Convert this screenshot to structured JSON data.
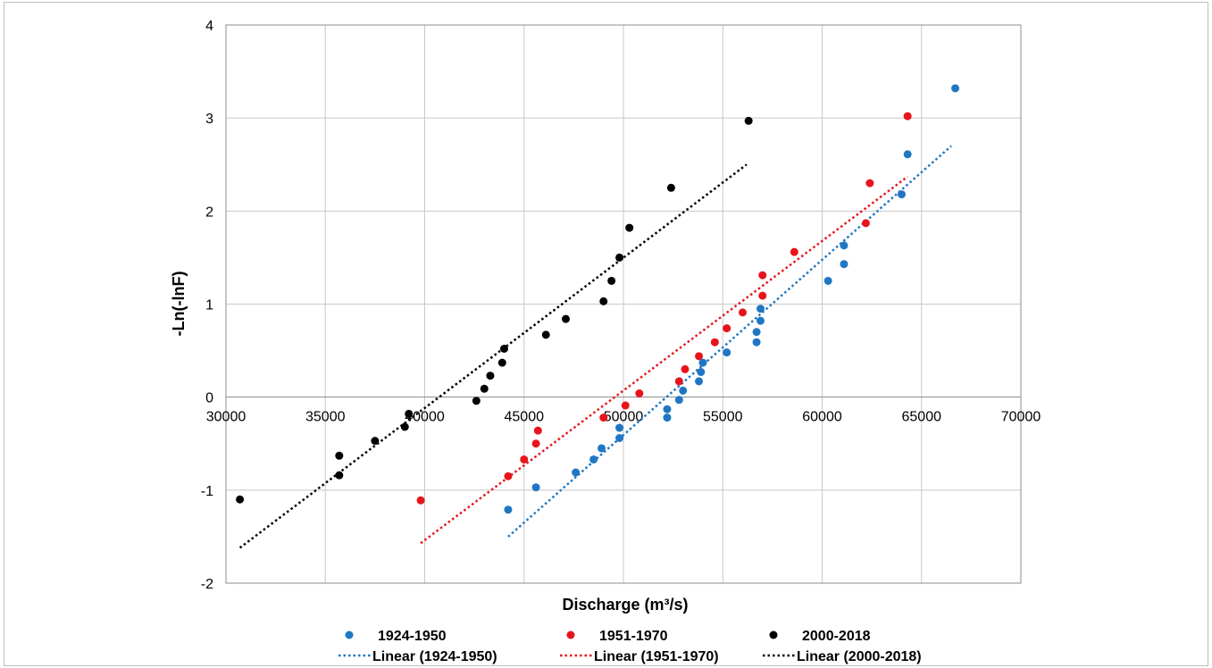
{
  "chart_data": {
    "type": "scatter",
    "xlabel": "Discharge (m³/s)",
    "ylabel": "-Ln(-lnF)",
    "xlim": [
      30000,
      70000
    ],
    "ylim": [
      -2,
      4
    ],
    "x_ticks": [
      30000,
      35000,
      40000,
      45000,
      50000,
      55000,
      60000,
      65000,
      70000
    ],
    "y_ticks": [
      -2,
      -1,
      0,
      1,
      2,
      3,
      4
    ],
    "grid": true,
    "legend_position": "bottom",
    "series": [
      {
        "name": "1924-1950",
        "color": "#1f77c4",
        "points": [
          [
            44200,
            -1.21
          ],
          [
            45600,
            -0.97
          ],
          [
            47600,
            -0.81
          ],
          [
            48500,
            -0.67
          ],
          [
            48900,
            -0.55
          ],
          [
            49800,
            -0.44
          ],
          [
            49800,
            -0.33
          ],
          [
            52200,
            -0.22
          ],
          [
            52200,
            -0.13
          ],
          [
            52800,
            -0.03
          ],
          [
            53000,
            0.07
          ],
          [
            53800,
            0.17
          ],
          [
            53900,
            0.27
          ],
          [
            54000,
            0.37
          ],
          [
            55200,
            0.48
          ],
          [
            56700,
            0.59
          ],
          [
            56700,
            0.7
          ],
          [
            56900,
            0.82
          ],
          [
            56900,
            0.95
          ],
          [
            60300,
            1.25
          ],
          [
            61100,
            1.43
          ],
          [
            61100,
            1.63
          ],
          [
            64000,
            2.18
          ],
          [
            64300,
            2.61
          ],
          [
            66700,
            3.32
          ]
        ],
        "trend": {
          "name": "Linear (1924-1950)",
          "x": [
            44200,
            66500
          ],
          "y": [
            -1.5,
            2.7
          ]
        }
      },
      {
        "name": "1951-1970",
        "color": "#e8141c",
        "points": [
          [
            39800,
            -1.11
          ],
          [
            44200,
            -0.85
          ],
          [
            45000,
            -0.67
          ],
          [
            45600,
            -0.5
          ],
          [
            45700,
            -0.36
          ],
          [
            49000,
            -0.22
          ],
          [
            50100,
            -0.09
          ],
          [
            50800,
            0.04
          ],
          [
            52800,
            0.17
          ],
          [
            53100,
            0.3
          ],
          [
            53800,
            0.44
          ],
          [
            54600,
            0.59
          ],
          [
            55200,
            0.74
          ],
          [
            56000,
            0.91
          ],
          [
            57000,
            1.09
          ],
          [
            57000,
            1.31
          ],
          [
            58600,
            1.56
          ],
          [
            62200,
            1.87
          ],
          [
            62400,
            2.3
          ],
          [
            64300,
            3.02
          ]
        ],
        "trend": {
          "name": "Linear (1951-1970)",
          "x": [
            39800,
            64300
          ],
          "y": [
            -1.57,
            2.37
          ]
        }
      },
      {
        "name": "2000-2018",
        "color": "#000000",
        "points": [
          [
            30700,
            -1.1
          ],
          [
            35700,
            -0.84
          ],
          [
            35700,
            -0.63
          ],
          [
            37500,
            -0.47
          ],
          [
            39000,
            -0.32
          ],
          [
            39200,
            -0.18
          ],
          [
            42600,
            -0.04
          ],
          [
            43000,
            0.09
          ],
          [
            43300,
            0.23
          ],
          [
            43900,
            0.37
          ],
          [
            44000,
            0.52
          ],
          [
            46100,
            0.67
          ],
          [
            47100,
            0.84
          ],
          [
            49000,
            1.03
          ],
          [
            49400,
            1.25
          ],
          [
            49800,
            1.5
          ],
          [
            50300,
            1.82
          ],
          [
            52400,
            2.25
          ],
          [
            56300,
            2.97
          ]
        ],
        "trend": {
          "name": "Linear (2000-2018)",
          "x": [
            30700,
            56200
          ],
          "y": [
            -1.62,
            2.5
          ]
        }
      }
    ]
  }
}
